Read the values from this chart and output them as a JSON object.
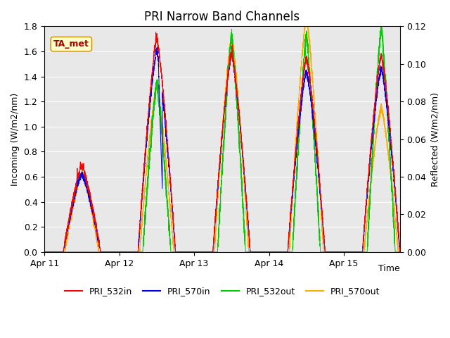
{
  "title": "PRI Narrow Band Channels",
  "xlabel": "Time",
  "ylabel_left": "Incoming (W/m2/nm)",
  "ylabel_right": "Reflected (W/m2/nm)",
  "ylim_left": [
    0,
    1.8
  ],
  "ylim_right": [
    0.0,
    0.12
  ],
  "yticks_left": [
    0.0,
    0.2,
    0.4,
    0.6,
    0.8,
    1.0,
    1.2,
    1.4,
    1.6,
    1.8
  ],
  "yticks_right": [
    0.0,
    0.02,
    0.04,
    0.06,
    0.08,
    0.1,
    0.12
  ],
  "annotation": "TA_met",
  "annotation_color": "#aa0000",
  "annotation_bg": "#ffffcc",
  "annotation_edge": "#cc8800",
  "background_color": "#e8e8e8",
  "legend_entries": [
    "PRI_532in",
    "PRI_570in",
    "PRI_532out",
    "PRI_570out"
  ],
  "line_colors": [
    "#ff0000",
    "#0000ee",
    "#00cc00",
    "#ffaa00"
  ],
  "xtick_labels": [
    "Apr 11",
    "Apr 12",
    "Apr 13",
    "Apr 14",
    "Apr 15"
  ],
  "title_fontsize": 12,
  "axis_fontsize": 9,
  "legend_fontsize": 9,
  "tick_fontsize": 9
}
